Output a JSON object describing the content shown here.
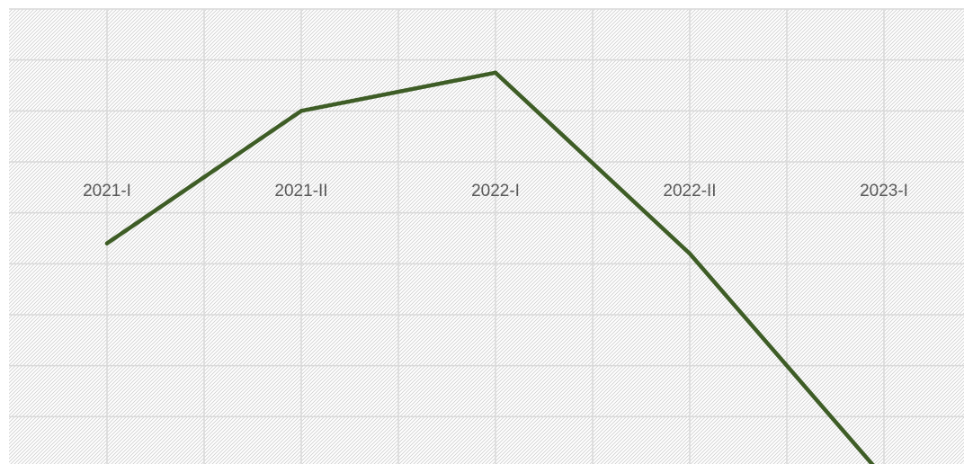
{
  "chart_data": {
    "type": "line",
    "categories": [
      "2021-I",
      "2021-II",
      "2022-I",
      "2022-II",
      "2023-I"
    ],
    "series": [
      {
        "values": [
          -1.6,
          1.0,
          1.75,
          -1.8,
          -6.2
        ]
      }
    ],
    "ylim": [
      -6.0,
      3.0
    ],
    "grid": true,
    "x_axis_crosses_at": 0,
    "line_color": "#3e5d26",
    "grid_color": "#d9d9d9",
    "hatch_color": "#cfcfcf"
  }
}
